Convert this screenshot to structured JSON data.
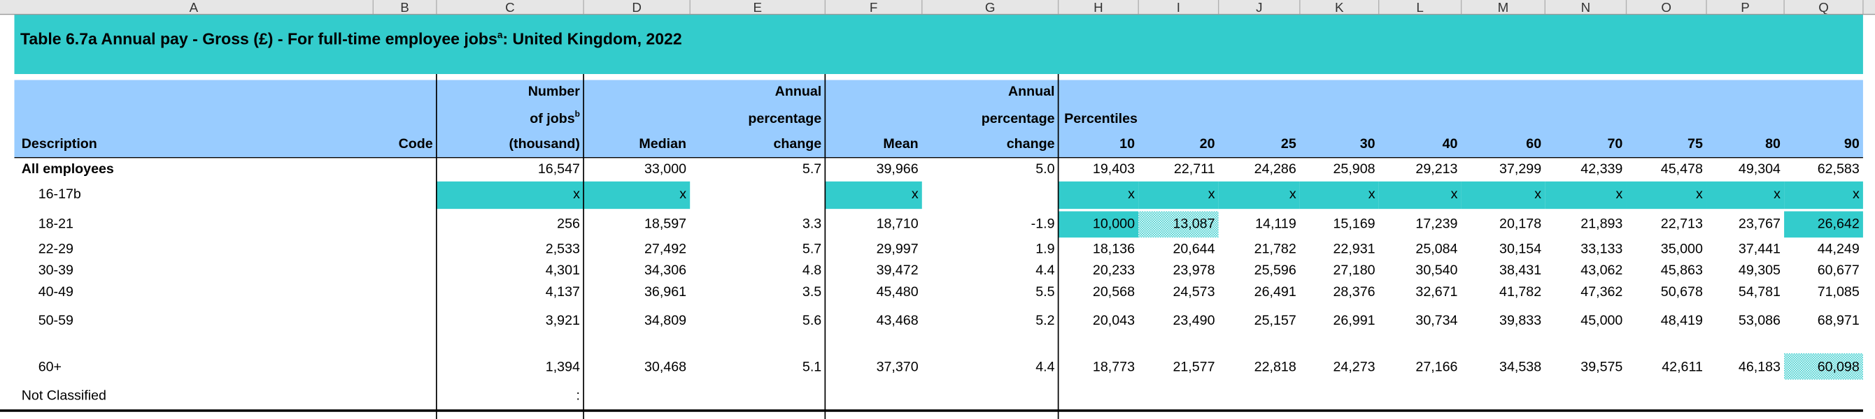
{
  "column_letters": [
    "A",
    "B",
    "C",
    "D",
    "E",
    "F",
    "G",
    "H",
    "I",
    "J",
    "K",
    "L",
    "M",
    "N",
    "O",
    "P",
    "Q"
  ],
  "header": {
    "title_main": "Table 6.7a   Annual pay - Gross (£) - For full-time employee jobs",
    "title_superscript": "a",
    "title_end": ": United Kingdom, 2022"
  },
  "table": {
    "headers": {
      "description": "Description",
      "code": "Code",
      "jobs": [
        "Number",
        "of jobs",
        "(thousand)"
      ],
      "jobs_superscript": "b",
      "median": "Median",
      "median_change": [
        "Annual",
        "percentage",
        "change"
      ],
      "mean": "Mean",
      "mean_change": [
        "Annual",
        "percentage",
        "change"
      ],
      "percentiles": "Percentiles",
      "percentile_columns": [
        "10",
        "20",
        "25",
        "30",
        "40",
        "60",
        "70",
        "75",
        "80",
        "90"
      ]
    },
    "rows": [
      {
        "description": "All employees",
        "values": [
          "16,547",
          "33,000",
          "5.7",
          "39,966",
          "5.0",
          "19,403",
          "22,711",
          "24,286",
          "25,908",
          "29,213",
          "37,299",
          "42,339",
          "45,478",
          "49,304",
          "62,583"
        ]
      },
      {
        "description": "16-17b",
        "values": [
          "x",
          "x",
          null,
          "x",
          null,
          "x",
          "x",
          "x",
          "x",
          "x",
          "x",
          "x",
          "x",
          "x",
          "x"
        ]
      },
      {
        "description": "18-21",
        "values": [
          "256",
          "18,597",
          "3.3",
          "18,710",
          "-1.9",
          "10,000",
          "13,087",
          "14,119",
          "15,169",
          "17,239",
          "20,178",
          "21,893",
          "22,713",
          "23,767",
          "26,642"
        ]
      },
      {
        "description": "22-29",
        "values": [
          "2,533",
          "27,492",
          "5.7",
          "29,997",
          "1.9",
          "18,136",
          "20,644",
          "21,782",
          "22,931",
          "25,084",
          "30,154",
          "33,133",
          "35,000",
          "37,441",
          "44,249"
        ]
      },
      {
        "description": "30-39",
        "values": [
          "4,301",
          "34,306",
          "4.8",
          "39,472",
          "4.4",
          "20,233",
          "23,978",
          "25,596",
          "27,180",
          "30,540",
          "38,431",
          "43,062",
          "45,863",
          "49,305",
          "60,677"
        ]
      },
      {
        "description": "40-49",
        "values": [
          "4,137",
          "36,961",
          "3.5",
          "45,480",
          "5.5",
          "20,568",
          "24,573",
          "26,491",
          "28,376",
          "32,671",
          "41,782",
          "47,362",
          "50,678",
          "54,781",
          "71,085"
        ]
      },
      {
        "description": "50-59",
        "values": [
          "3,921",
          "34,809",
          "5.6",
          "43,468",
          "5.2",
          "20,043",
          "23,490",
          "25,157",
          "26,991",
          "30,734",
          "39,833",
          "45,000",
          "48,419",
          "53,086",
          "68,971"
        ]
      },
      {
        "description": "60+",
        "values": [
          "1,394",
          "30,468",
          "5.1",
          "37,370",
          "4.4",
          "18,773",
          "21,577",
          "22,818",
          "24,273",
          "27,166",
          "34,538",
          "39,575",
          "42,611",
          "46,183",
          "60,098"
        ]
      },
      {
        "description": "Not Classified",
        "values": [
          ":",
          null,
          null,
          null,
          null,
          null,
          null,
          null,
          null,
          null,
          null,
          null,
          null,
          null,
          null
        ]
      }
    ]
  }
}
